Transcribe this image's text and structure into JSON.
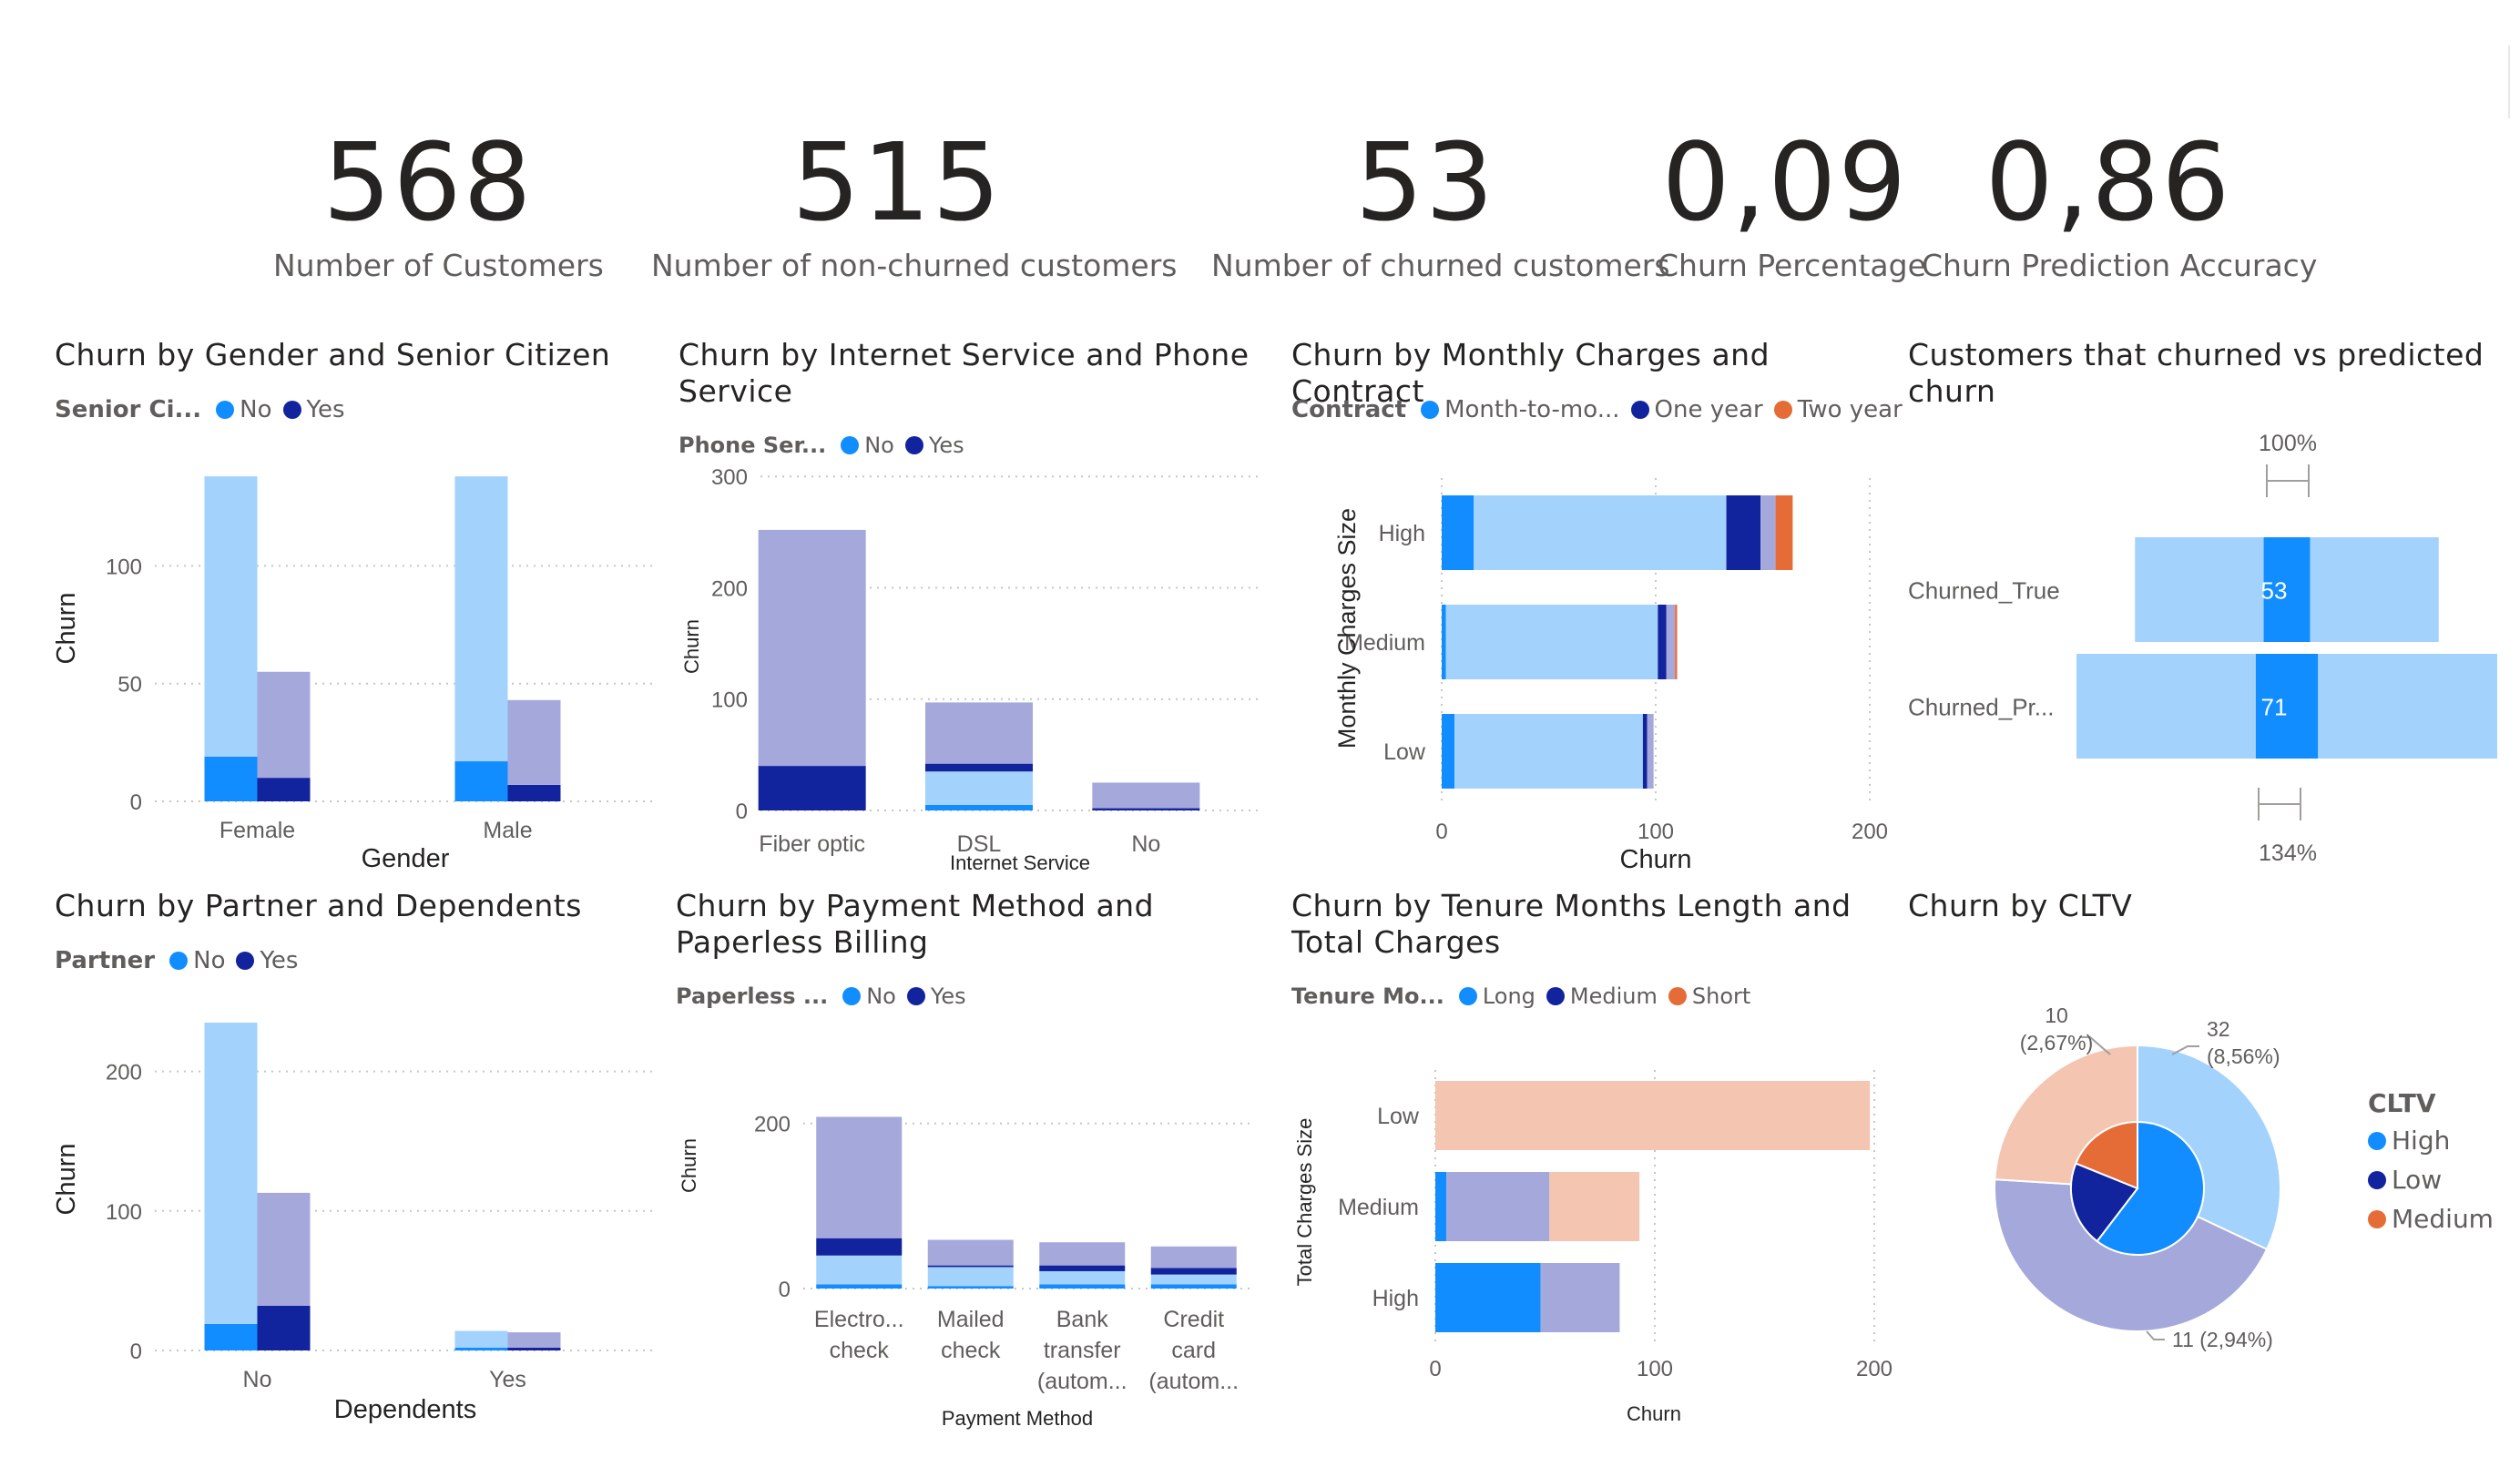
{
  "kpis": [
    {
      "value": "568",
      "label": "Number of Customers"
    },
    {
      "value": "515",
      "label": "Number of non-churned customers"
    },
    {
      "value": "53",
      "label": "Number of churned customers"
    },
    {
      "value": "0,09",
      "label": "Churn Percentage"
    },
    {
      "value": "0,86",
      "label": "Churn Prediction Accuracy"
    }
  ],
  "colors": {
    "light_blue": "#a3d2fd",
    "blue": "#118dff",
    "dark_blue": "#12239e",
    "lavender": "#a4a8db",
    "orange": "#e66c37",
    "peach": "#f4c5b1",
    "grid": "#c8c6c4",
    "text": "#605e5c"
  },
  "chart_data": [
    {
      "id": "gender",
      "type": "bar",
      "title": "Churn by Gender and Senior Citizen",
      "legend_title": "Senior Ci...",
      "legend": [
        {
          "label": "No",
          "color": "#118dff"
        },
        {
          "label": "Yes",
          "color": "#12239e"
        }
      ],
      "xlabel": "Gender",
      "ylabel": "Churn",
      "categories": [
        "Female",
        "Male"
      ],
      "yticks": [
        0,
        50,
        100
      ],
      "ylim": [
        0,
        145
      ],
      "groups": [
        {
          "category": "Female",
          "bars": [
            {
              "series": "No",
              "segments": [
                {
                  "value": 19,
                  "color": "#118dff"
                },
                {
                  "value": 119,
                  "color": "#a3d2fd"
                }
              ]
            },
            {
              "series": "Yes",
              "segments": [
                {
                  "value": 10,
                  "color": "#12239e"
                },
                {
                  "value": 45,
                  "color": "#a4a8db"
                }
              ]
            }
          ]
        },
        {
          "category": "Male",
          "bars": [
            {
              "series": "No",
              "segments": [
                {
                  "value": 17,
                  "color": "#118dff"
                },
                {
                  "value": 121,
                  "color": "#a3d2fd"
                }
              ]
            },
            {
              "series": "Yes",
              "segments": [
                {
                  "value": 7,
                  "color": "#12239e"
                },
                {
                  "value": 36,
                  "color": "#a4a8db"
                }
              ]
            }
          ]
        }
      ]
    },
    {
      "id": "internet",
      "type": "bar",
      "title": "Churn by Internet Service and Phone Service",
      "legend_title": "Phone Ser...",
      "legend": [
        {
          "label": "No",
          "color": "#118dff"
        },
        {
          "label": "Yes",
          "color": "#12239e"
        }
      ],
      "xlabel": "Internet Service",
      "ylabel": "Churn",
      "categories": [
        "Fiber optic",
        "DSL",
        "No"
      ],
      "yticks": [
        0,
        100,
        200,
        300
      ],
      "ylim": [
        0,
        310
      ],
      "groups": [
        {
          "category": "Fiber optic",
          "bars": [
            {
              "series": "stack",
              "segments": [
                {
                  "value": 40,
                  "color": "#12239e"
                },
                {
                  "value": 212,
                  "color": "#a4a8db"
                }
              ]
            }
          ]
        },
        {
          "category": "DSL",
          "bars": [
            {
              "series": "stack",
              "segments": [
                {
                  "value": 5,
                  "color": "#118dff"
                },
                {
                  "value": 30,
                  "color": "#a3d2fd"
                },
                {
                  "value": 7,
                  "color": "#12239e"
                },
                {
                  "value": 55,
                  "color": "#a4a8db"
                }
              ]
            }
          ]
        },
        {
          "category": "No",
          "bars": [
            {
              "series": "stack",
              "segments": [
                {
                  "value": 2,
                  "color": "#12239e"
                },
                {
                  "value": 23,
                  "color": "#a4a8db"
                }
              ]
            }
          ]
        }
      ]
    },
    {
      "id": "monthly",
      "type": "bar",
      "orientation": "horizontal",
      "title": "Churn by Monthly Charges and Contract",
      "legend_title": "Contract",
      "legend": [
        {
          "label": "Month-to-mo...",
          "color": "#118dff"
        },
        {
          "label": "One year",
          "color": "#12239e"
        },
        {
          "label": "Two year",
          "color": "#e66c37"
        }
      ],
      "xlabel": "Churn",
      "ylabel": "Monthly Charges Size",
      "categories": [
        "High",
        "Medium",
        "Low"
      ],
      "xticks": [
        0,
        100,
        200
      ],
      "xlim": [
        0,
        200
      ],
      "groups": [
        {
          "category": "High",
          "segments": [
            {
              "value": 15,
              "color": "#118dff"
            },
            {
              "value": 118,
              "color": "#a3d2fd"
            },
            {
              "value": 16,
              "color": "#12239e"
            },
            {
              "value": 7,
              "color": "#a4a8db"
            },
            {
              "value": 8,
              "color": "#e66c37"
            }
          ]
        },
        {
          "category": "Medium",
          "segments": [
            {
              "value": 2,
              "color": "#118dff"
            },
            {
              "value": 99,
              "color": "#a3d2fd"
            },
            {
              "value": 4,
              "color": "#12239e"
            },
            {
              "value": 4,
              "color": "#a4a8db"
            },
            {
              "value": 1,
              "color": "#e66c37"
            }
          ]
        },
        {
          "category": "Low",
          "segments": [
            {
              "value": 6,
              "color": "#118dff"
            },
            {
              "value": 88,
              "color": "#a3d2fd"
            },
            {
              "value": 2,
              "color": "#12239e"
            },
            {
              "value": 3,
              "color": "#a4a8db"
            }
          ]
        }
      ]
    },
    {
      "id": "predicted",
      "type": "funnel",
      "title": "Customers that churned vs predicted churn",
      "top_label": "100%",
      "bottom_label": "134%",
      "rows": [
        {
          "category": "Churned_True",
          "value": 53,
          "total": 568,
          "label": "53"
        },
        {
          "category": "Churned_Pr...",
          "value": 71,
          "total": 787,
          "label": "71"
        }
      ]
    },
    {
      "id": "partner",
      "type": "bar",
      "title": "Churn by Partner and Dependents",
      "legend_title": "Partner",
      "legend": [
        {
          "label": "No",
          "color": "#118dff"
        },
        {
          "label": "Yes",
          "color": "#12239e"
        }
      ],
      "xlabel": "Dependents",
      "ylabel": "Churn",
      "categories": [
        "No",
        "Yes"
      ],
      "yticks": [
        0,
        100,
        200
      ],
      "ylim": [
        0,
        235
      ],
      "groups": [
        {
          "category": "No",
          "bars": [
            {
              "series": "No",
              "segments": [
                {
                  "value": 19,
                  "color": "#118dff"
                },
                {
                  "value": 216,
                  "color": "#a3d2fd"
                }
              ]
            },
            {
              "series": "Yes",
              "segments": [
                {
                  "value": 32,
                  "color": "#12239e"
                },
                {
                  "value": 81,
                  "color": "#a4a8db"
                }
              ]
            }
          ]
        },
        {
          "category": "Yes",
          "bars": [
            {
              "series": "No",
              "segments": [
                {
                  "value": 2,
                  "color": "#118dff"
                },
                {
                  "value": 12,
                  "color": "#a3d2fd"
                }
              ]
            },
            {
              "series": "Yes",
              "segments": [
                {
                  "value": 2,
                  "color": "#12239e"
                },
                {
                  "value": 11,
                  "color": "#a4a8db"
                }
              ]
            }
          ]
        }
      ]
    },
    {
      "id": "payment",
      "type": "bar",
      "title": "Churn by Payment Method and Paperless Billing",
      "legend_title": "Paperless ...",
      "legend": [
        {
          "label": "No",
          "color": "#118dff"
        },
        {
          "label": "Yes",
          "color": "#12239e"
        }
      ],
      "xlabel": "Payment Method",
      "ylabel": "Churn",
      "categories": [
        "Electro... check",
        "Mailed check",
        "Bank transfer (autom...",
        "Credit card (autom..."
      ],
      "yticks": [
        0,
        200
      ],
      "ylim": [
        0,
        235
      ],
      "groups": [
        {
          "category": "Electro... check",
          "bars": [
            {
              "series": "stack",
              "segments": [
                {
                  "value": 5,
                  "color": "#118dff"
                },
                {
                  "value": 35,
                  "color": "#a3d2fd"
                },
                {
                  "value": 21,
                  "color": "#12239e"
                },
                {
                  "value": 147,
                  "color": "#a4a8db"
                }
              ]
            }
          ]
        },
        {
          "category": "Mailed check",
          "bars": [
            {
              "series": "stack",
              "segments": [
                {
                  "value": 3,
                  "color": "#118dff"
                },
                {
                  "value": 23,
                  "color": "#a3d2fd"
                },
                {
                  "value": 2,
                  "color": "#12239e"
                },
                {
                  "value": 31,
                  "color": "#a4a8db"
                }
              ]
            }
          ]
        },
        {
          "category": "Bank transfer (autom...",
          "bars": [
            {
              "series": "stack",
              "segments": [
                {
                  "value": 5,
                  "color": "#118dff"
                },
                {
                  "value": 16,
                  "color": "#a3d2fd"
                },
                {
                  "value": 7,
                  "color": "#12239e"
                },
                {
                  "value": 28,
                  "color": "#a4a8db"
                }
              ]
            }
          ]
        },
        {
          "category": "Credit card (autom...",
          "bars": [
            {
              "series": "stack",
              "segments": [
                {
                  "value": 5,
                  "color": "#118dff"
                },
                {
                  "value": 12,
                  "color": "#a3d2fd"
                },
                {
                  "value": 8,
                  "color": "#12239e"
                },
                {
                  "value": 26,
                  "color": "#a4a8db"
                }
              ]
            }
          ]
        }
      ]
    },
    {
      "id": "tenure",
      "type": "bar",
      "orientation": "horizontal",
      "title": "Churn by Tenure Months Length and Total Charges",
      "legend_title": "Tenure Mo...",
      "legend": [
        {
          "label": "Long",
          "color": "#118dff"
        },
        {
          "label": "Medium",
          "color": "#12239e"
        },
        {
          "label": "Short",
          "color": "#e66c37"
        }
      ],
      "xlabel": "Churn",
      "ylabel": "Total Charges Size",
      "categories": [
        "Low",
        "Medium",
        "High"
      ],
      "xticks": [
        0,
        100,
        200
      ],
      "xlim": [
        0,
        200
      ],
      "groups": [
        {
          "category": "Low",
          "segments": [
            {
              "value": 198,
              "color": "#f4c5b1"
            }
          ]
        },
        {
          "category": "Medium",
          "segments": [
            {
              "value": 5,
              "color": "#118dff"
            },
            {
              "value": 47,
              "color": "#a4a8db"
            },
            {
              "value": 41,
              "color": "#f4c5b1"
            }
          ]
        },
        {
          "category": "High",
          "segments": [
            {
              "value": 48,
              "color": "#118dff"
            },
            {
              "value": 36,
              "color": "#a4a8db"
            }
          ]
        }
      ]
    },
    {
      "id": "cltv",
      "type": "pie",
      "title": "Churn by CLTV",
      "legend_title": "CLTV",
      "legend": [
        {
          "label": "High",
          "color": "#118dff"
        },
        {
          "label": "Low",
          "color": "#12239e"
        },
        {
          "label": "Medium",
          "color": "#e66c37"
        }
      ],
      "inner": [
        {
          "label": "High",
          "value": 32,
          "color": "#118dff"
        },
        {
          "label": "Low",
          "value": 11,
          "color": "#12239e"
        },
        {
          "label": "Medium",
          "value": 10,
          "color": "#e66c37"
        }
      ],
      "outer": [
        {
          "label": "High",
          "value": 32,
          "color": "#a3d2fd"
        },
        {
          "label": "Low",
          "value": 44,
          "color": "#a4a8db"
        },
        {
          "label": "Medium",
          "value": 24,
          "color": "#f4c5b1"
        }
      ],
      "data_labels": [
        {
          "text1": "32",
          "text2": "(8,56%)"
        },
        {
          "text1": "11 (2,94%)",
          "text2": ""
        },
        {
          "text1": "10",
          "text2": "(2,67%)"
        }
      ]
    }
  ]
}
